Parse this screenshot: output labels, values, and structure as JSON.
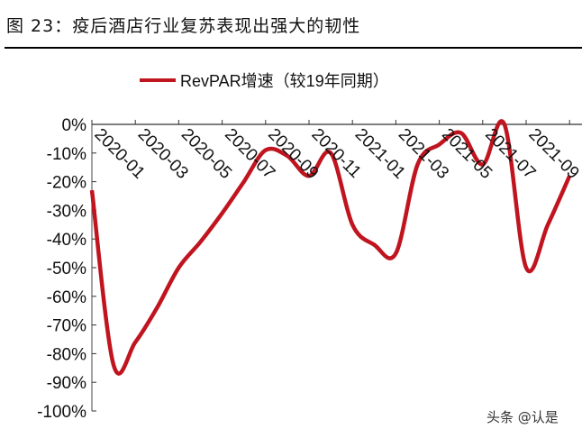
{
  "title": "图 23：疫后酒店行业复苏表现出强大的韧性",
  "watermark": "头条 @认是",
  "chart_data": {
    "type": "line",
    "title": "",
    "xlabel": "",
    "ylabel": "",
    "ylim": [
      -100,
      0
    ],
    "yticks": [
      "0%",
      "-10%",
      "-20%",
      "-30%",
      "-40%",
      "-50%",
      "-60%",
      "-70%",
      "-80%",
      "-90%",
      "-100%"
    ],
    "xtick_labels": [
      "2020-01",
      "2020-03",
      "2020-05",
      "2020-07",
      "2020-09",
      "2020-11",
      "2021-01",
      "2021-03",
      "2021-05",
      "2021-07",
      "2021-09"
    ],
    "x": [
      "2020-01",
      "2020-02",
      "2020-03",
      "2020-04",
      "2020-05",
      "2020-06",
      "2020-07",
      "2020-08",
      "2020-09",
      "2020-10",
      "2020-11",
      "2020-12",
      "2021-01",
      "2021-02",
      "2021-03",
      "2021-04",
      "2021-05",
      "2021-06",
      "2021-07",
      "2021-08",
      "2021-09",
      "2021-10",
      "2021-11"
    ],
    "series": [
      {
        "name": "RevPAR增速（较19年同期）",
        "color": "#c0141f",
        "values": [
          -23,
          -84,
          -76,
          -64,
          -50,
          -41,
          -31,
          -20,
          -9,
          -11,
          -18,
          -10,
          -35,
          -42,
          -45,
          -14,
          -7,
          -3,
          -14,
          0,
          -50,
          -35,
          -18
        ]
      }
    ],
    "legend": "top-center",
    "grid": false
  }
}
